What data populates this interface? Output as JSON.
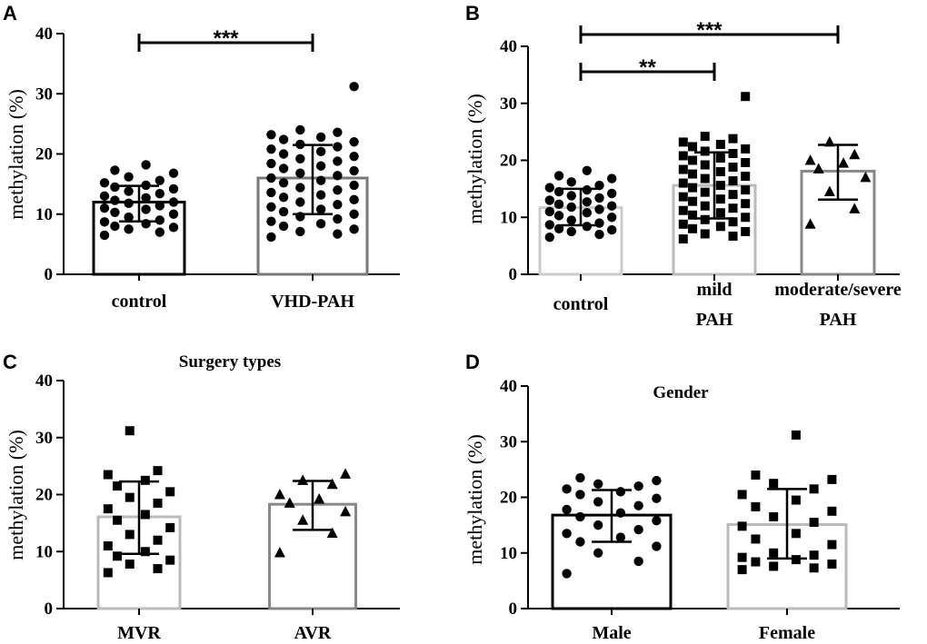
{
  "chart_data": [
    {
      "panel": "A",
      "type": "bar",
      "title": "",
      "ylabel": "methylation (%)",
      "ylim": [
        0,
        40
      ],
      "yticks": [
        0,
        10,
        20,
        30,
        40
      ],
      "categories": [
        "control",
        "VHD-PAH"
      ],
      "series": [
        {
          "name": "control",
          "mean": 12,
          "sd_low": 8.8,
          "sd_high": 14.7,
          "marker": "circle",
          "bar_color": "#000000",
          "points": [
            6.5,
            7.0,
            7.5,
            7.8,
            8.0,
            8.4,
            8.7,
            9.0,
            9.5,
            10.0,
            10.3,
            10.8,
            11.0,
            11.4,
            11.8,
            12.0,
            12.3,
            12.7,
            13.0,
            13.4,
            13.8,
            14.2,
            14.5,
            14.8,
            15.2,
            15.6,
            16.2,
            16.8,
            17.3,
            18.2
          ]
        },
        {
          "name": "VHD-PAH",
          "mean": 16,
          "sd_low": 10,
          "sd_high": 21.5,
          "marker": "circle",
          "bar_color": "#777777",
          "points": [
            6.2,
            6.7,
            7.1,
            7.5,
            8.0,
            8.4,
            8.8,
            9.2,
            9.6,
            10.0,
            10.4,
            10.8,
            11.2,
            11.6,
            12.0,
            12.4,
            12.8,
            13.2,
            13.6,
            14.0,
            14.4,
            14.8,
            15.2,
            15.6,
            16.0,
            16.4,
            16.8,
            17.2,
            17.6,
            18.0,
            18.4,
            18.8,
            19.2,
            19.6,
            20.0,
            20.4,
            20.8,
            21.2,
            21.6,
            22.0,
            22.4,
            22.8,
            23.2,
            23.6,
            24.0,
            31.2
          ]
        }
      ],
      "comparisons": [
        {
          "from": "control",
          "to": "VHD-PAH",
          "label": "***"
        }
      ]
    },
    {
      "panel": "B",
      "type": "bar",
      "title": "",
      "ylabel": "methylation (%)",
      "ylim": [
        0,
        40
      ],
      "yticks": [
        0,
        10,
        20,
        30,
        40
      ],
      "categories": [
        "control",
        "mild\nPAH",
        "moderate/severe\nPAH"
      ],
      "series": [
        {
          "name": "control",
          "mean": 11.7,
          "sd_low": 8.6,
          "sd_high": 15.0,
          "marker": "circle",
          "bar_color": "#cccccc",
          "points": [
            6.5,
            7.0,
            7.5,
            7.8,
            8.0,
            8.4,
            8.7,
            9.0,
            9.5,
            10.0,
            10.3,
            10.8,
            11.0,
            11.4,
            11.8,
            12.0,
            12.3,
            12.7,
            13.0,
            13.4,
            13.8,
            14.2,
            14.5,
            14.8,
            15.2,
            15.6,
            16.2,
            16.8,
            17.3,
            18.2
          ]
        },
        {
          "name": "mild PAH",
          "mean": 15.6,
          "sd_low": 9.8,
          "sd_high": 21.4,
          "marker": "square",
          "bar_color": "#bbbbbb",
          "points": [
            6.2,
            6.7,
            7.1,
            7.5,
            8.0,
            8.4,
            8.8,
            9.2,
            9.6,
            10.0,
            10.4,
            10.8,
            11.2,
            11.6,
            12.0,
            12.4,
            12.8,
            13.2,
            13.6,
            14.0,
            14.4,
            14.8,
            15.2,
            15.6,
            16.0,
            16.4,
            16.8,
            17.2,
            17.6,
            18.0,
            18.4,
            18.8,
            19.2,
            19.6,
            20.0,
            20.4,
            20.8,
            21.2,
            21.6,
            22.0,
            22.4,
            22.8,
            23.2,
            23.8,
            24.2,
            31.2
          ]
        },
        {
          "name": "moderate/severe PAH",
          "mean": 18.1,
          "sd_low": 13.1,
          "sd_high": 22.7,
          "marker": "triangle",
          "bar_color": "#888888",
          "points": [
            8.8,
            11.5,
            14.5,
            17.0,
            18.5,
            19.5,
            20.0,
            21.0,
            23.2
          ]
        }
      ],
      "comparisons": [
        {
          "from": "control",
          "to": "mild\nPAH",
          "label": "**"
        },
        {
          "from": "control",
          "to": "moderate/severe\nPAH",
          "label": "***"
        }
      ]
    },
    {
      "panel": "C",
      "type": "bar",
      "title": "Surgery types",
      "ylabel": "methylation (%)",
      "ylim": [
        0,
        40
      ],
      "yticks": [
        0,
        10,
        20,
        30,
        40
      ],
      "categories": [
        "MVR",
        "AVR"
      ],
      "series": [
        {
          "name": "MVR",
          "mean": 16.1,
          "sd_low": 9.6,
          "sd_high": 22.3,
          "marker": "square",
          "bar_color": "#bbbbbb",
          "points": [
            6.3,
            7.0,
            7.8,
            8.5,
            9.2,
            10.0,
            11.0,
            12.0,
            13.0,
            14.2,
            15.5,
            16.5,
            17.5,
            18.5,
            19.5,
            20.5,
            21.5,
            22.5,
            23.5,
            24.2,
            31.2
          ]
        },
        {
          "name": "AVR",
          "mean": 18.3,
          "sd_low": 13.8,
          "sd_high": 22.4,
          "marker": "triangle",
          "bar_color": "#888888",
          "points": [
            9.8,
            13.2,
            15.5,
            17.0,
            18.5,
            19.2,
            20.0,
            21.8,
            22.5,
            23.6
          ]
        }
      ],
      "comparisons": []
    },
    {
      "panel": "D",
      "type": "bar",
      "title": "Gender",
      "ylabel": "methylation (%)",
      "ylim": [
        0,
        40
      ],
      "yticks": [
        0,
        10,
        20,
        30,
        40
      ],
      "categories": [
        "Male",
        "Female"
      ],
      "series": [
        {
          "name": "Male",
          "mean": 16.8,
          "sd_low": 12.0,
          "sd_high": 21.3,
          "marker": "circle",
          "bar_color": "#000000",
          "points": [
            6.3,
            8.5,
            10.0,
            11.2,
            12.0,
            12.8,
            13.5,
            14.2,
            15.0,
            15.8,
            16.5,
            17.2,
            17.8,
            18.5,
            19.2,
            19.8,
            20.5,
            21.0,
            21.5,
            22.0,
            22.4,
            23.0,
            23.5
          ]
        },
        {
          "name": "Female",
          "mean": 15.1,
          "sd_low": 9.0,
          "sd_high": 21.5,
          "marker": "square",
          "bar_color": "#bbbbbb",
          "points": [
            7.0,
            7.3,
            7.6,
            8.0,
            8.4,
            8.8,
            9.2,
            9.6,
            10.0,
            11.5,
            12.5,
            13.5,
            14.8,
            15.5,
            16.5,
            17.5,
            18.3,
            19.5,
            20.5,
            21.5,
            22.5,
            23.2,
            24.0,
            31.2
          ]
        }
      ],
      "comparisons": []
    }
  ]
}
